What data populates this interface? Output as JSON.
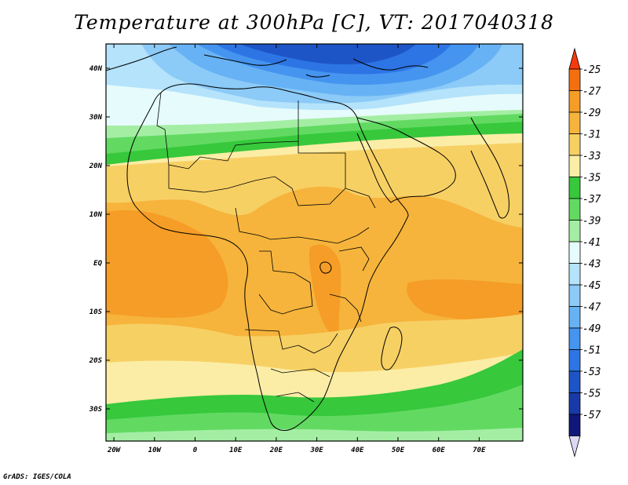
{
  "title": "Temperature at 300hPa [C], VT: 2017040318",
  "credit": "GrADS: IGES/COLA",
  "map": {
    "lon_labels": [
      "20W",
      "10W",
      "0",
      "10E",
      "20E",
      "30E",
      "40E",
      "50E",
      "60E",
      "70E"
    ],
    "lat_labels": [
      "40N",
      "30N",
      "20N",
      "10N",
      "EQ",
      "10S",
      "20S",
      "30S"
    ]
  },
  "colorbar": {
    "labels": [
      "-25",
      "-27",
      "-29",
      "-31",
      "-33",
      "-35",
      "-37",
      "-39",
      "-41",
      "-43",
      "-45",
      "-47",
      "-49",
      "-51",
      "-53",
      "-55",
      "-57"
    ],
    "colors": [
      "#f53a0e",
      "#f56f0f",
      "#f59d26",
      "#f6b43c",
      "#f7d064",
      "#fbeda6",
      "#37c83c",
      "#62da62",
      "#a4eea4",
      "#e6fbfb",
      "#b4e3fb",
      "#8ccaf7",
      "#67b2f4",
      "#4594ef",
      "#2d75e4",
      "#1e55c6",
      "#1839a8",
      "#10167a",
      "#ddd9f4"
    ]
  }
}
